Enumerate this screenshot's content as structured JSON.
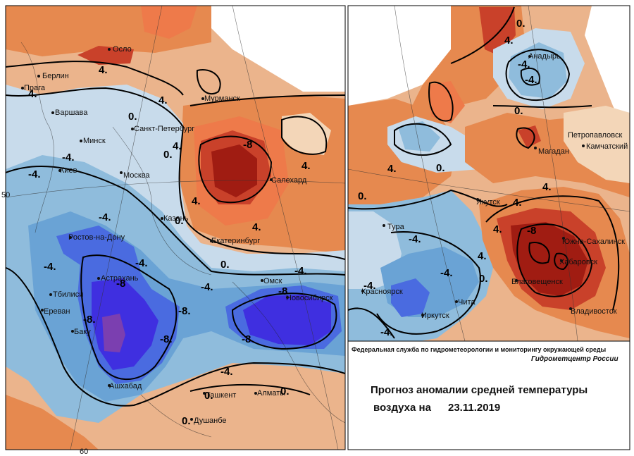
{
  "legend_colors": {
    "warm_4": "#ebb48c",
    "warm_8": "#e6894f",
    "warm_12": "#ee7a4a",
    "warm_16": "#c9412a",
    "warm_20": "#a01c12",
    "neutral": "#f3d6b8",
    "cold_0": "#c8dbeb",
    "cold_4": "#8fbcdc",
    "cold_8": "#6aa3d5",
    "cold_12": "#4a6be0",
    "cold_16": "#3f2fe0",
    "cold_20": "#7b3fb0"
  },
  "left_map": {
    "cities": [
      "Осло",
      "Берлин",
      "Прага",
      "Варшава",
      "Минск",
      "Киев",
      "Москва",
      "Санкт-Петербург",
      "Мурманск",
      "Салехард",
      "Казань",
      "Екатеринбург",
      "Ростов-на-Дону",
      "Астрахань",
      "Тбилиси",
      "Ереван",
      "Баку",
      "Ашхабад",
      "Ташкент",
      "Алматы",
      "Душанбе",
      "Омск",
      "Новосибирск"
    ],
    "isolines": [
      "4.",
      "0.",
      "4.",
      "4.",
      "4.",
      "-8",
      "0.",
      "-4.",
      "-4.",
      "4.",
      "0.",
      "4.",
      "4.",
      "-4.",
      "-4.",
      "-4.",
      "0.",
      "-4.",
      "-4.",
      "-8",
      "-8.",
      "-8",
      "-8.",
      "-8.",
      "-8",
      "-4.",
      "0.",
      "0.",
      "0."
    ],
    "grid_labels": [
      "50",
      "60"
    ]
  },
  "right_map": {
    "cities": [
      "Анадырь",
      "Петропавловск",
      "Камчатский",
      "Магадан",
      "Якутск",
      "Тура",
      "Южно-Сахалинск",
      "Хабаровск",
      "Благовещенск",
      "Владивосток",
      "Красноярск",
      "Иркутск",
      "Чита"
    ],
    "isolines": [
      "0.",
      "-4.",
      "4.",
      "-4.",
      "0.",
      "0.",
      "4.",
      "4.",
      "4.",
      "4.",
      "0.",
      "-4.",
      "-4.",
      "0.",
      "-4.",
      "-8",
      "4.",
      "-4."
    ]
  },
  "info": {
    "org": "Федеральная служба по гидрометеорологии и мониторингу окружающей среды",
    "center": "Гидрометцентр России",
    "title_line1": "Прогноз аномалии средней температуры",
    "title_line2_prefix": "воздуха на",
    "date": "23.11.2019"
  }
}
